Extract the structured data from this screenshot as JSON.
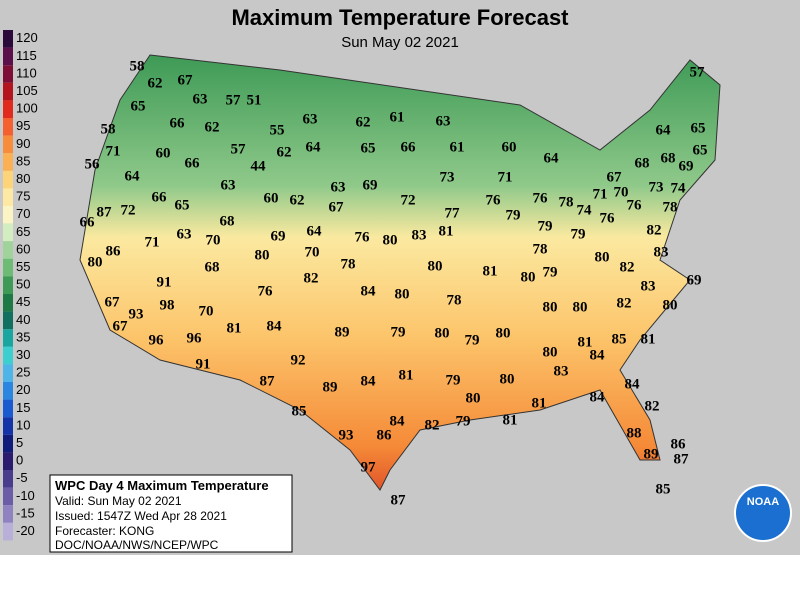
{
  "header": {
    "title": "Maximum Temperature Forecast",
    "subtitle": "Sun May 02 2021"
  },
  "legend": {
    "values": [
      120,
      115,
      110,
      105,
      100,
      95,
      90,
      85,
      80,
      75,
      70,
      65,
      60,
      55,
      50,
      45,
      40,
      35,
      30,
      25,
      20,
      15,
      10,
      5,
      0,
      -5,
      -10,
      -15,
      -20
    ]
  },
  "temperatures": [
    58,
    62,
    67,
    63,
    57,
    51,
    65,
    66,
    62,
    55,
    63,
    62,
    61,
    63,
    58,
    71,
    60,
    66,
    57,
    62,
    64,
    65,
    66,
    61,
    60,
    64,
    56,
    64,
    44,
    63,
    63,
    69,
    73,
    71,
    57,
    64,
    65,
    65,
    68,
    68,
    69,
    67,
    71,
    70,
    73,
    74,
    78,
    87,
    66,
    72,
    66,
    65,
    60,
    62,
    72,
    67,
    77,
    76,
    79,
    76,
    78,
    74,
    76,
    76,
    68,
    63,
    71,
    70,
    69,
    64,
    76,
    80,
    83,
    81,
    79,
    79,
    82,
    83,
    86,
    80,
    68,
    80,
    70,
    78,
    80,
    81,
    78,
    80,
    79,
    80,
    82,
    69,
    91,
    76,
    82,
    84,
    80,
    78,
    80,
    80,
    82,
    83,
    80,
    67,
    98,
    93,
    70,
    67,
    81,
    84,
    89,
    79,
    80,
    79,
    80,
    96,
    96,
    85,
    81,
    80,
    81,
    84,
    91,
    92,
    87,
    89,
    84,
    81,
    79,
    80,
    83,
    84,
    85,
    80,
    81,
    84,
    82,
    93,
    86,
    84,
    82,
    79,
    81,
    88,
    86,
    89,
    87,
    97,
    87,
    85
  ],
  "info": {
    "title": "WPC Day 4 Maximum Temperature",
    "lines": [
      "Valid: Sun May 02 2021",
      "Issued: 1547Z Wed Apr 28 2021",
      "Forecaster: KONG",
      "DOC/NOAA/NWS/NCEP/WPC"
    ]
  },
  "logo": "NOAA"
}
